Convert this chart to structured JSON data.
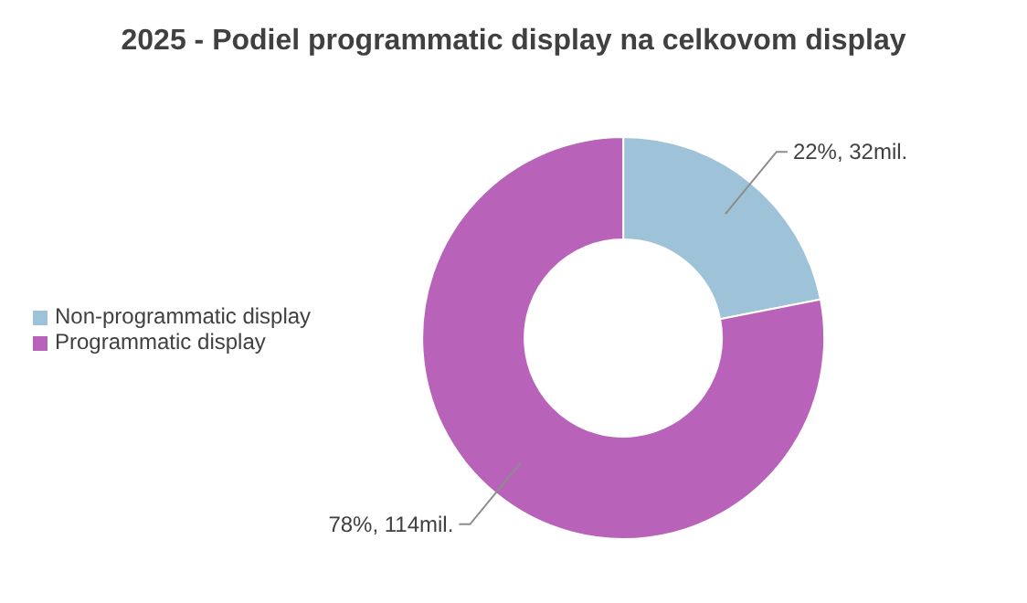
{
  "chart_data": {
    "type": "donut",
    "title": "2025 - Podiel programmatic display na celkovom display",
    "categories": [
      "Non-programmatic display",
      "Programmatic display"
    ],
    "values": [
      32,
      114
    ],
    "colors": [
      "#9ec3d9",
      "#b962b9"
    ],
    "value_labels": [
      "22%, 32mil.",
      "78%, 114mil."
    ],
    "legend": "left"
  }
}
